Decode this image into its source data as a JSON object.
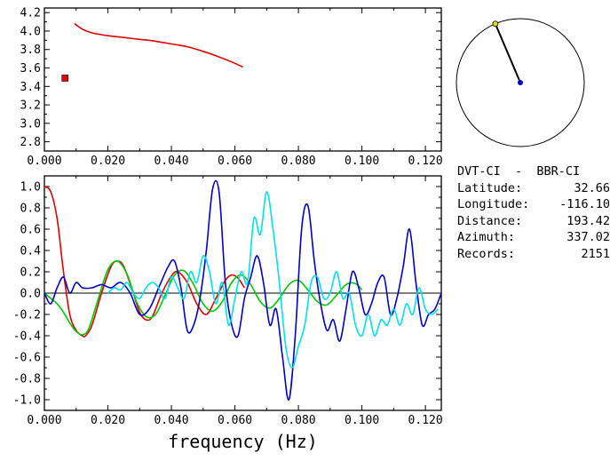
{
  "colors": {
    "phase_velocity": "#e00000",
    "red": "#e00000",
    "blue": "#0000c8",
    "cyan": "#00e0f0",
    "green": "#00c800",
    "station_dot": "#e0e000",
    "center_dot": "#0000c8"
  },
  "info": {
    "pair": "DVT-CI  -  BBR-CI",
    "rows": [
      {
        "label": "Latitude:",
        "value": "32.66"
      },
      {
        "label": "Longitude:",
        "value": "-116.10"
      },
      {
        "label": "Distance:",
        "value": "193.42"
      },
      {
        "label": "Azimuth:",
        "value": "337.02"
      },
      {
        "label": "Records:",
        "value": "2151"
      }
    ]
  },
  "azimuth_dial": {
    "azimuth_deg": 337.02
  },
  "chart_data": [
    {
      "type": "line",
      "xlim": [
        0.0,
        0.125
      ],
      "ylim": [
        2.7,
        4.25
      ],
      "x_ticks": [
        "0.000",
        "0.020",
        "0.040",
        "0.060",
        "0.080",
        "0.100",
        "0.120"
      ],
      "y_ticks": [
        "2.8",
        "3.0",
        "3.2",
        "3.4",
        "3.6",
        "3.8",
        "4.0",
        "4.2"
      ],
      "grid": false,
      "series": [
        {
          "color": "red",
          "x": [
            0.0095,
            0.012,
            0.015,
            0.02,
            0.025,
            0.03,
            0.035,
            0.04,
            0.045,
            0.05,
            0.055,
            0.06,
            0.0625
          ],
          "y": [
            4.08,
            4.02,
            3.98,
            3.95,
            3.93,
            3.91,
            3.89,
            3.86,
            3.83,
            3.78,
            3.72,
            3.65,
            3.61
          ]
        }
      ],
      "markers": [
        {
          "x": 0.0065,
          "y": 3.49,
          "shape": "square",
          "color": "red"
        }
      ]
    },
    {
      "type": "line",
      "xlim": [
        0.0,
        0.125
      ],
      "ylim": [
        -1.1,
        1.1
      ],
      "x_ticks": [
        "0.000",
        "0.020",
        "0.040",
        "0.060",
        "0.080",
        "0.100",
        "0.120"
      ],
      "y_ticks": [
        "-1.0",
        "-0.8",
        "-0.6",
        "-0.4",
        "-0.2",
        "0.0",
        "0.2",
        "0.4",
        "0.6",
        "0.8",
        "1.0"
      ],
      "xlabel": "frequency (Hz)",
      "zero_line": true,
      "grid": false,
      "series": [
        {
          "color": "red",
          "x": [
            0.0,
            0.002,
            0.004,
            0.006,
            0.008,
            0.01,
            0.012,
            0.013,
            0.015,
            0.018,
            0.021,
            0.023,
            0.025,
            0.028,
            0.03,
            0.032,
            0.034,
            0.037,
            0.04,
            0.042,
            0.045,
            0.048,
            0.051,
            0.054,
            0.057,
            0.059,
            0.061,
            0.063
          ],
          "y": [
            1.0,
            0.95,
            0.7,
            0.2,
            -0.2,
            -0.35,
            -0.4,
            -0.4,
            -0.3,
            0.0,
            0.25,
            0.3,
            0.25,
            0.0,
            -0.18,
            -0.25,
            -0.22,
            0.0,
            0.16,
            0.2,
            0.1,
            -0.1,
            -0.2,
            -0.05,
            0.12,
            0.17,
            0.14,
            0.05
          ]
        },
        {
          "color": "green",
          "x": [
            0.0,
            0.002,
            0.004,
            0.006,
            0.008,
            0.01,
            0.012,
            0.014,
            0.017,
            0.02,
            0.023,
            0.026,
            0.029,
            0.032,
            0.035,
            0.038,
            0.041,
            0.044,
            0.047,
            0.05,
            0.053,
            0.056,
            0.059,
            0.062,
            0.065,
            0.068,
            0.071,
            0.074,
            0.077,
            0.08,
            0.083,
            0.086,
            0.089,
            0.092,
            0.095,
            0.098,
            0.1
          ],
          "y": [
            0.0,
            -0.05,
            -0.1,
            -0.18,
            -0.28,
            -0.36,
            -0.39,
            -0.33,
            -0.05,
            0.22,
            0.3,
            0.18,
            -0.08,
            -0.22,
            -0.2,
            -0.02,
            0.17,
            0.21,
            0.08,
            -0.1,
            -0.17,
            -0.08,
            0.1,
            0.17,
            0.08,
            -0.08,
            -0.14,
            -0.05,
            0.08,
            0.12,
            0.03,
            -0.08,
            -0.11,
            -0.02,
            0.08,
            0.09,
            0.03
          ]
        },
        {
          "color": "blue",
          "x": [
            0.0,
            0.002,
            0.004,
            0.006,
            0.008,
            0.01,
            0.012,
            0.015,
            0.018,
            0.021,
            0.024,
            0.027,
            0.03,
            0.033,
            0.036,
            0.039,
            0.041,
            0.043,
            0.045,
            0.047,
            0.049,
            0.051,
            0.053,
            0.055,
            0.057,
            0.059,
            0.061,
            0.063,
            0.065,
            0.067,
            0.069,
            0.071,
            0.073,
            0.075,
            0.077,
            0.079,
            0.081,
            0.083,
            0.085,
            0.087,
            0.089,
            0.091,
            0.093,
            0.095,
            0.097,
            0.099,
            0.101,
            0.103,
            0.105,
            0.107,
            0.109,
            0.111,
            0.113,
            0.115,
            0.117,
            0.119,
            0.121,
            0.123,
            0.125
          ],
          "y": [
            0.0,
            -0.1,
            0.05,
            0.15,
            0.0,
            0.1,
            0.05,
            0.05,
            0.08,
            0.05,
            0.1,
            0.0,
            -0.2,
            -0.15,
            0.05,
            0.25,
            0.3,
            0.05,
            -0.35,
            -0.3,
            -0.05,
            0.4,
            0.98,
            0.95,
            0.1,
            -0.3,
            -0.4,
            -0.05,
            0.15,
            0.35,
            0.1,
            -0.3,
            -0.15,
            -0.6,
            -1.0,
            -0.4,
            0.6,
            0.82,
            0.3,
            -0.1,
            -0.35,
            -0.25,
            -0.45,
            -0.15,
            0.2,
            0.05,
            -0.2,
            -0.1,
            0.1,
            0.15,
            -0.2,
            -0.05,
            0.25,
            0.6,
            0.1,
            -0.3,
            -0.2,
            -0.15,
            0.0
          ]
        },
        {
          "color": "cyan",
          "x": [
            0.02,
            0.022,
            0.024,
            0.026,
            0.028,
            0.03,
            0.032,
            0.034,
            0.036,
            0.038,
            0.04,
            0.042,
            0.044,
            0.046,
            0.048,
            0.05,
            0.052,
            0.054,
            0.056,
            0.058,
            0.06,
            0.062,
            0.064,
            0.066,
            0.068,
            0.07,
            0.072,
            0.074,
            0.076,
            0.078,
            0.08,
            0.082,
            0.084,
            0.086,
            0.088,
            0.09,
            0.092,
            0.094,
            0.096,
            0.098,
            0.1,
            0.102,
            0.104,
            0.106,
            0.108,
            0.11,
            0.112,
            0.114,
            0.116,
            0.118,
            0.12,
            0.122,
            0.124
          ],
          "y": [
            0.0,
            0.05,
            0.03,
            0.1,
            0.0,
            -0.05,
            0.05,
            0.1,
            0.05,
            -0.05,
            0.15,
            0.05,
            -0.05,
            0.2,
            0.1,
            0.35,
            0.2,
            -0.1,
            0.1,
            -0.3,
            -0.05,
            0.2,
            0.1,
            0.7,
            0.55,
            0.95,
            0.6,
            0.1,
            -0.5,
            -0.7,
            -0.5,
            -0.3,
            0.1,
            0.15,
            -0.05,
            0.0,
            0.2,
            -0.05,
            0.0,
            -0.3,
            -0.4,
            -0.2,
            -0.4,
            -0.25,
            -0.3,
            -0.15,
            -0.3,
            -0.1,
            -0.2,
            0.05,
            -0.15,
            -0.2,
            -0.15
          ]
        }
      ]
    }
  ]
}
